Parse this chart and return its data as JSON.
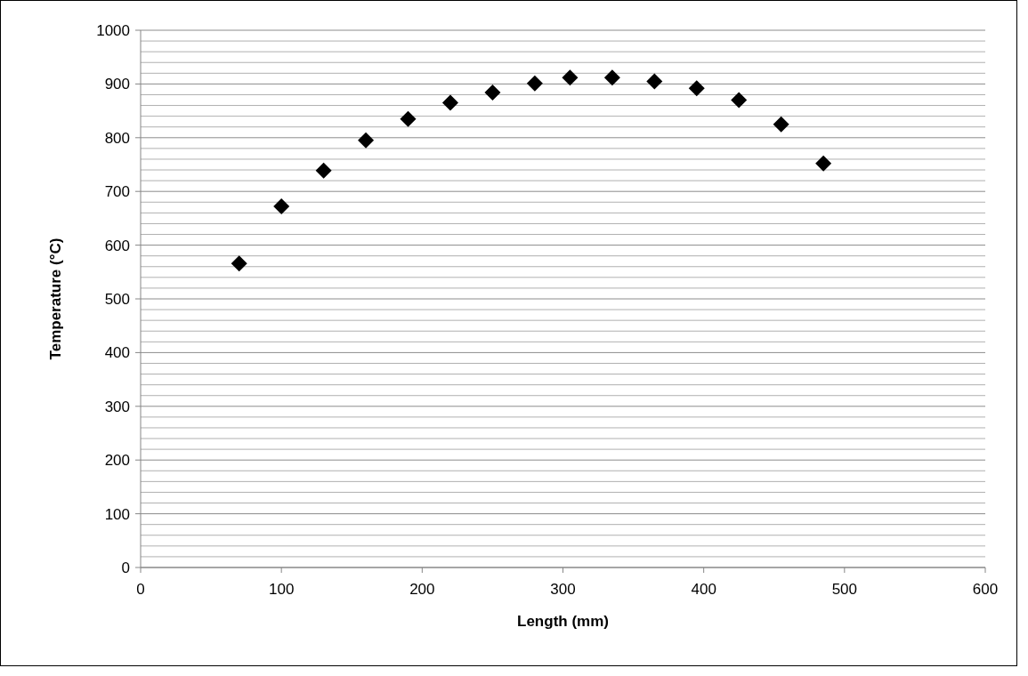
{
  "chart_data": {
    "type": "scatter",
    "xlabel": "Length (mm)",
    "ylabel": "Temperature (°C)",
    "x": [
      70,
      100,
      130,
      160,
      190,
      220,
      250,
      280,
      305,
      335,
      365,
      395,
      425,
      455,
      485
    ],
    "series": [
      {
        "color": "#000000",
        "values": [
          566,
          672,
          739,
          795,
          835,
          865,
          884,
          901,
          912,
          912,
          905,
          892,
          870,
          825,
          752
        ]
      }
    ],
    "marker": "diamond",
    "xlim": [
      0,
      600
    ],
    "xticks": [
      0,
      100,
      200,
      300,
      400,
      500,
      600
    ],
    "ylim": [
      0,
      1000
    ],
    "yticks": [
      0,
      {
        "value": 20,
        "label": null
      },
      {
        "value": 40,
        "label": null
      },
      {
        "value": 60,
        "label": null
      },
      {
        "value": 80,
        "label": null
      },
      100,
      {
        "value": 120,
        "label": null
      },
      {
        "value": 140,
        "label": null
      },
      {
        "value": 160,
        "label": null
      },
      {
        "value": 180,
        "label": null
      },
      200,
      {
        "value": 220,
        "label": null
      },
      {
        "value": 240,
        "label": null
      },
      {
        "value": 260,
        "label": null
      },
      {
        "value": 280,
        "label": null
      },
      300,
      {
        "value": 320,
        "label": null
      },
      {
        "value": 340,
        "label": null
      },
      {
        "value": 360,
        "label": null
      },
      {
        "value": 380,
        "label": null
      },
      400,
      {
        "value": 420,
        "label": null
      },
      {
        "value": 440,
        "label": null
      },
      {
        "value": 460,
        "label": null
      },
      {
        "value": 480,
        "label": null
      },
      500,
      {
        "value": 520,
        "label": null
      },
      {
        "value": 540,
        "label": null
      },
      {
        "value": 560,
        "label": null
      },
      {
        "value": 580,
        "label": null
      },
      600,
      {
        "value": 620,
        "label": null
      },
      {
        "value": 640,
        "label": null
      },
      {
        "value": 660,
        "label": null
      },
      {
        "value": 680,
        "label": null
      },
      700,
      {
        "value": 720,
        "label": null
      },
      {
        "value": 740,
        "label": null
      },
      {
        "value": 760,
        "label": null
      },
      {
        "value": 780,
        "label": null
      },
      800,
      {
        "value": 820,
        "label": null
      },
      {
        "value": 840,
        "label": null
      },
      {
        "value": 860,
        "label": null
      },
      {
        "value": 880,
        "label": null
      },
      900,
      {
        "value": 920,
        "label": null
      },
      {
        "value": 940,
        "label": null
      },
      {
        "value": 960,
        "label": null
      },
      {
        "value": 980,
        "label": null
      },
      1000
    ],
    "grid": "y"
  }
}
